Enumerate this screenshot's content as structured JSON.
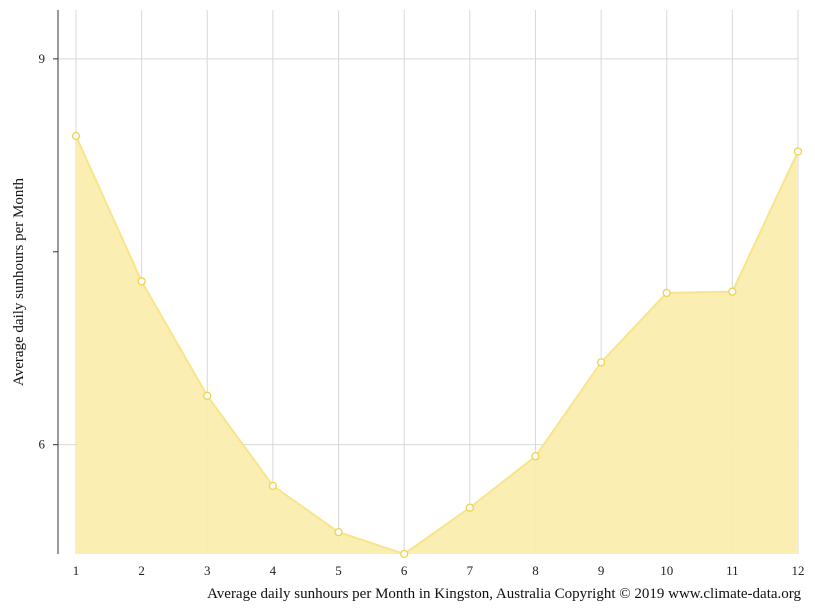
{
  "chart_data": {
    "type": "area",
    "x": [
      1,
      2,
      3,
      4,
      5,
      6,
      7,
      8,
      9,
      10,
      11,
      12
    ],
    "values": [
      8.4,
      7.27,
      6.38,
      5.68,
      5.32,
      5.15,
      5.51,
      5.91,
      6.64,
      7.18,
      7.19,
      8.28
    ],
    "x_tick_labels": [
      "1",
      "2",
      "3",
      "4",
      "5",
      "6",
      "7",
      "8",
      "9",
      "10",
      "11",
      "12"
    ],
    "y_tick_labels": [
      "6",
      "9"
    ],
    "y_ticks": [
      6,
      9
    ],
    "ylabel": "Average daily sunhours per Month",
    "ylim": [
      5.15,
      9.38
    ],
    "grid": true,
    "colors": {
      "fill": "#faedaf",
      "line": "#f8e58a",
      "marker": "#f2d24a",
      "grid": "#d9d9d9"
    }
  },
  "caption": "Average daily sunhours per Month in Kingston, Australia Copyright © 2019 www.climate-data.org"
}
